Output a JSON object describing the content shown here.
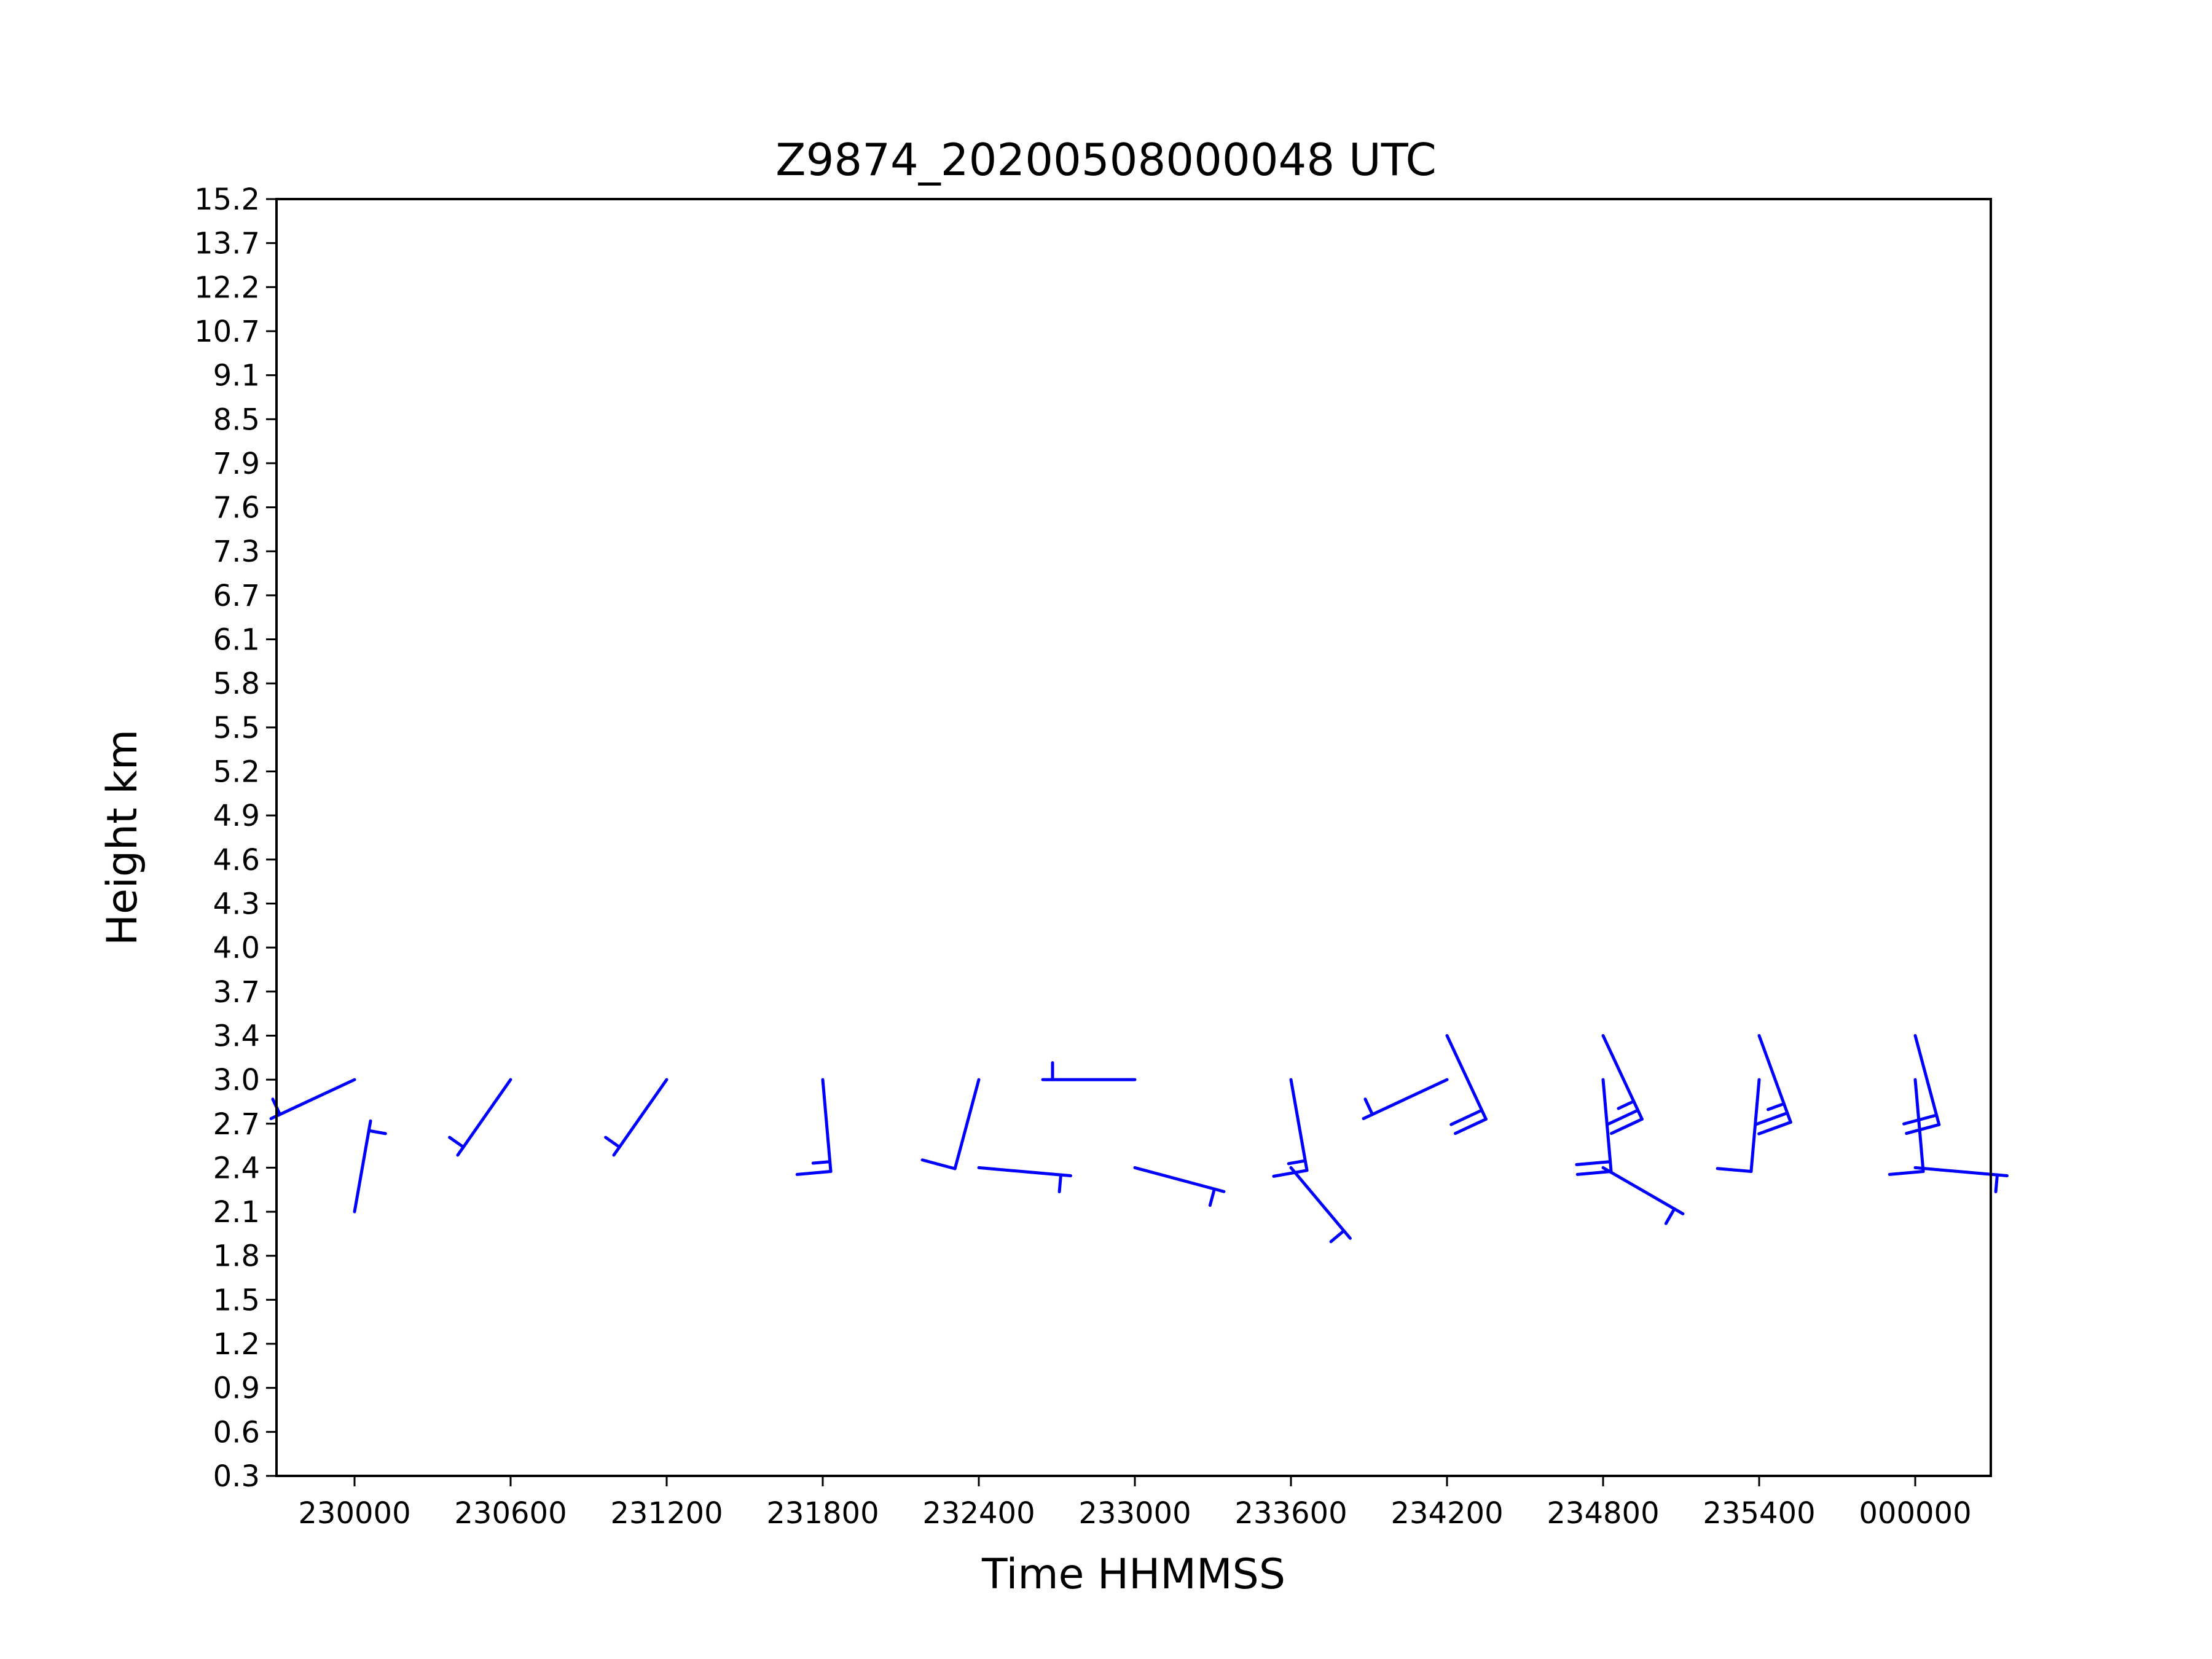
{
  "chart_data": {
    "type": "scatter",
    "marker": "wind-barb",
    "title": "Z9874_20200508000048 UTC",
    "xlabel": "Time HHMMSS",
    "ylabel": "Height km",
    "x_ticks": [
      "230000",
      "230600",
      "231200",
      "231800",
      "232400",
      "233000",
      "233600",
      "234200",
      "234800",
      "235400",
      "000000"
    ],
    "y_ticks": [
      "0.3",
      "0.6",
      "0.9",
      "1.2",
      "1.5",
      "1.8",
      "2.1",
      "2.4",
      "2.7",
      "3.0",
      "3.4",
      "3.7",
      "4.0",
      "4.3",
      "4.6",
      "4.9",
      "5.2",
      "5.5",
      "5.8",
      "6.1",
      "6.7",
      "7.3",
      "7.6",
      "7.9",
      "8.5",
      "9.1",
      "10.7",
      "12.2",
      "13.7",
      "15.2"
    ],
    "series_color": "#0000ff",
    "grid": false,
    "barbs": [
      {
        "time": "230000",
        "height": "2.1",
        "dir": 10,
        "speed": 5
      },
      {
        "time": "230000",
        "height": "3.0",
        "dir": 245,
        "speed": 5
      },
      {
        "time": "230600",
        "height": "3.0",
        "dir": 215,
        "speed": 5
      },
      {
        "time": "231200",
        "height": "3.0",
        "dir": 215,
        "speed": 5
      },
      {
        "time": "231800",
        "height": "3.0",
        "dir": 175,
        "speed": 15
      },
      {
        "time": "232400",
        "height": "2.4",
        "dir": 95,
        "speed": 5
      },
      {
        "time": "232400",
        "height": "3.0",
        "dir": 195,
        "speed": 10
      },
      {
        "time": "233000",
        "height": "2.4",
        "dir": 105,
        "speed": 5
      },
      {
        "time": "233000",
        "height": "3.0",
        "dir": 270,
        "speed": 5
      },
      {
        "time": "233600",
        "height": "2.4",
        "dir": 140,
        "speed": 5
      },
      {
        "time": "233600",
        "height": "3.0",
        "dir": 170,
        "speed": 15
      },
      {
        "time": "234200",
        "height": "3.0",
        "dir": 245,
        "speed": 5
      },
      {
        "time": "234200",
        "height": "3.4",
        "dir": 155,
        "speed": 20
      },
      {
        "time": "234800",
        "height": "2.4",
        "dir": 120,
        "speed": 5
      },
      {
        "time": "234800",
        "height": "3.0",
        "dir": 175,
        "speed": 20
      },
      {
        "time": "234800",
        "height": "3.4",
        "dir": 155,
        "speed": 25
      },
      {
        "time": "235400",
        "height": "3.0",
        "dir": 185,
        "speed": 10
      },
      {
        "time": "235400",
        "height": "3.4",
        "dir": 160,
        "speed": 25
      },
      {
        "time": "000000",
        "height": "2.4",
        "dir": 95,
        "speed": 5
      },
      {
        "time": "000000",
        "height": "3.0",
        "dir": 175,
        "speed": 10
      },
      {
        "time": "000000",
        "height": "3.4",
        "dir": 165,
        "speed": 20
      }
    ]
  }
}
